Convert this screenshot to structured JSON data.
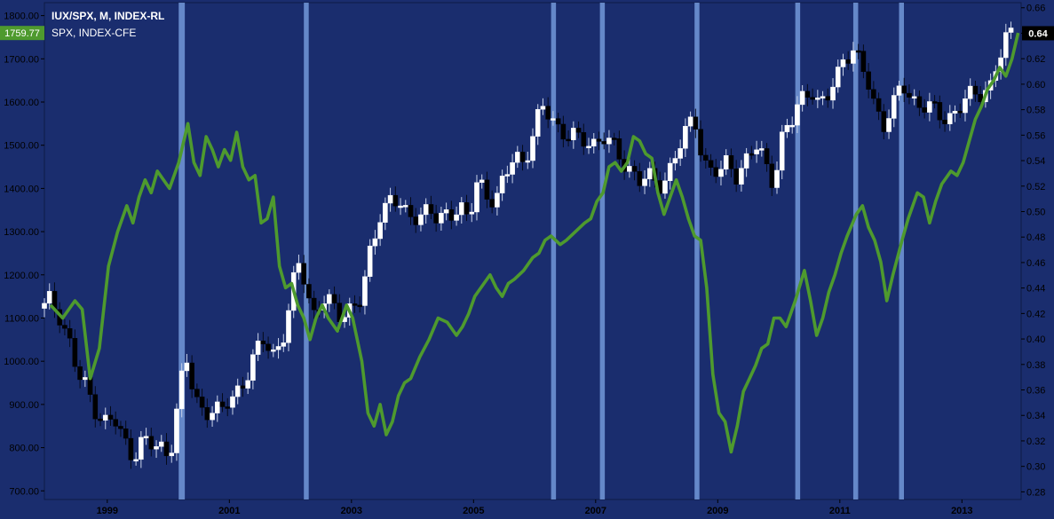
{
  "chart_data": {
    "type": "candlestick-line",
    "title": "IUX/SPX, M, INDEX-RL",
    "series": [
      {
        "name": "IUX/SPX, M, INDEX-RL",
        "kind": "candles",
        "axis": "right"
      },
      {
        "name": "SPX, INDEX-CFE",
        "kind": "line",
        "axis": "left"
      }
    ],
    "x_ticks": [
      "1999",
      "2001",
      "2003",
      "2005",
      "2007",
      "2009",
      "2011",
      "2013"
    ],
    "left_axis": {
      "ticks": [
        "700.00",
        "800.00",
        "900.00",
        "1000.00",
        "1100.00",
        "1200.00",
        "1300.00",
        "1400.00",
        "1500.00",
        "1600.00",
        "1700.00",
        "1800.00"
      ],
      "range": [
        680,
        1830
      ]
    },
    "right_axis": {
      "ticks": [
        "0.28",
        "0.30",
        "0.32",
        "0.34",
        "0.36",
        "0.38",
        "0.40",
        "0.42",
        "0.44",
        "0.46",
        "0.48",
        "0.50",
        "0.52",
        "0.54",
        "0.56",
        "0.58",
        "0.60",
        "0.62",
        "0.64",
        "0.66"
      ],
      "range": [
        0.274,
        0.664
      ]
    },
    "last_values": {
      "spx": "1759.77",
      "ratio": "0.64"
    },
    "spx_line": [
      [
        1998.1,
        1130
      ],
      [
        1998.3,
        1100
      ],
      [
        1998.5,
        1140
      ],
      [
        1998.62,
        1120
      ],
      [
        1998.75,
        960
      ],
      [
        1998.9,
        1030
      ],
      [
        1999.05,
        1220
      ],
      [
        1999.2,
        1300
      ],
      [
        1999.35,
        1360
      ],
      [
        1999.45,
        1320
      ],
      [
        1999.55,
        1380
      ],
      [
        1999.65,
        1420
      ],
      [
        1999.75,
        1390
      ],
      [
        1999.85,
        1440
      ],
      [
        1999.95,
        1420
      ],
      [
        2000.05,
        1400
      ],
      [
        2000.2,
        1460
      ],
      [
        2000.35,
        1550
      ],
      [
        2000.45,
        1460
      ],
      [
        2000.55,
        1430
      ],
      [
        2000.65,
        1520
      ],
      [
        2000.75,
        1490
      ],
      [
        2000.85,
        1450
      ],
      [
        2000.95,
        1490
      ],
      [
        2001.05,
        1465
      ],
      [
        2001.15,
        1530
      ],
      [
        2001.25,
        1450
      ],
      [
        2001.35,
        1420
      ],
      [
        2001.45,
        1430
      ],
      [
        2001.55,
        1320
      ],
      [
        2001.65,
        1330
      ],
      [
        2001.75,
        1380
      ],
      [
        2001.85,
        1220
      ],
      [
        2001.95,
        1170
      ],
      [
        2002.05,
        1180
      ],
      [
        2002.15,
        1130
      ],
      [
        2002.25,
        1100
      ],
      [
        2002.35,
        1050
      ],
      [
        2002.45,
        1100
      ],
      [
        2002.55,
        1130
      ],
      [
        2002.65,
        1100
      ],
      [
        2002.8,
        1070
      ],
      [
        2002.95,
        1130
      ],
      [
        2003.05,
        1100
      ],
      [
        2003.2,
        1000
      ],
      [
        2003.3,
        880
      ],
      [
        2003.4,
        850
      ],
      [
        2003.5,
        900
      ],
      [
        2003.6,
        830
      ],
      [
        2003.7,
        860
      ],
      [
        2003.8,
        920
      ],
      [
        2003.9,
        950
      ],
      [
        2004.0,
        960
      ],
      [
        2004.15,
        1010
      ],
      [
        2004.3,
        1050
      ],
      [
        2004.45,
        1100
      ],
      [
        2004.6,
        1090
      ],
      [
        2004.75,
        1060
      ],
      [
        2004.85,
        1080
      ],
      [
        2004.95,
        1110
      ],
      [
        2005.05,
        1150
      ],
      [
        2005.2,
        1180
      ],
      [
        2005.3,
        1200
      ],
      [
        2005.4,
        1170
      ],
      [
        2005.5,
        1150
      ],
      [
        2005.6,
        1180
      ],
      [
        2005.7,
        1190
      ],
      [
        2005.85,
        1210
      ],
      [
        2006.0,
        1240
      ],
      [
        2006.1,
        1250
      ],
      [
        2006.2,
        1280
      ],
      [
        2006.3,
        1290
      ],
      [
        2006.45,
        1270
      ],
      [
        2006.55,
        1280
      ],
      [
        2006.7,
        1300
      ],
      [
        2006.85,
        1320
      ],
      [
        2006.95,
        1330
      ],
      [
        2007.05,
        1370
      ],
      [
        2007.15,
        1390
      ],
      [
        2007.25,
        1450
      ],
      [
        2007.35,
        1460
      ],
      [
        2007.45,
        1440
      ],
      [
        2007.55,
        1460
      ],
      [
        2007.65,
        1520
      ],
      [
        2007.75,
        1510
      ],
      [
        2007.85,
        1480
      ],
      [
        2007.95,
        1470
      ],
      [
        2008.05,
        1390
      ],
      [
        2008.15,
        1340
      ],
      [
        2008.25,
        1380
      ],
      [
        2008.35,
        1420
      ],
      [
        2008.45,
        1380
      ],
      [
        2008.55,
        1330
      ],
      [
        2008.65,
        1290
      ],
      [
        2008.75,
        1280
      ],
      [
        2008.85,
        1170
      ],
      [
        2008.95,
        970
      ],
      [
        2009.05,
        880
      ],
      [
        2009.15,
        860
      ],
      [
        2009.25,
        790
      ],
      [
        2009.35,
        850
      ],
      [
        2009.45,
        930
      ],
      [
        2009.55,
        960
      ],
      [
        2009.65,
        990
      ],
      [
        2009.75,
        1030
      ],
      [
        2009.85,
        1040
      ],
      [
        2009.95,
        1100
      ],
      [
        2010.05,
        1100
      ],
      [
        2010.15,
        1080
      ],
      [
        2010.3,
        1140
      ],
      [
        2010.45,
        1210
      ],
      [
        2010.55,
        1140
      ],
      [
        2010.65,
        1060
      ],
      [
        2010.75,
        1100
      ],
      [
        2010.85,
        1160
      ],
      [
        2010.95,
        1200
      ],
      [
        2011.05,
        1250
      ],
      [
        2011.15,
        1290
      ],
      [
        2011.3,
        1340
      ],
      [
        2011.4,
        1360
      ],
      [
        2011.5,
        1310
      ],
      [
        2011.6,
        1280
      ],
      [
        2011.7,
        1230
      ],
      [
        2011.8,
        1140
      ],
      [
        2011.9,
        1200
      ],
      [
        2012.05,
        1280
      ],
      [
        2012.15,
        1330
      ],
      [
        2012.3,
        1390
      ],
      [
        2012.4,
        1380
      ],
      [
        2012.5,
        1320
      ],
      [
        2012.6,
        1370
      ],
      [
        2012.7,
        1410
      ],
      [
        2012.85,
        1440
      ],
      [
        2012.95,
        1430
      ],
      [
        2013.05,
        1460
      ],
      [
        2013.15,
        1510
      ],
      [
        2013.25,
        1560
      ],
      [
        2013.35,
        1590
      ],
      [
        2013.45,
        1630
      ],
      [
        2013.55,
        1650
      ],
      [
        2013.65,
        1680
      ],
      [
        2013.75,
        1660
      ],
      [
        2013.85,
        1700
      ],
      [
        2013.95,
        1760
      ]
    ],
    "ratio_line": [
      [
        1998.0,
        0.424
      ],
      [
        1998.1,
        0.43
      ],
      [
        1998.25,
        0.42
      ],
      [
        1998.4,
        0.4
      ],
      [
        1998.55,
        0.37
      ],
      [
        1998.7,
        0.36
      ],
      [
        1998.85,
        0.345
      ],
      [
        1999.0,
        0.335
      ],
      [
        1999.15,
        0.335
      ],
      [
        1999.3,
        0.32
      ],
      [
        1999.45,
        0.31
      ],
      [
        1999.6,
        0.32
      ],
      [
        1999.75,
        0.315
      ],
      [
        1999.9,
        0.315
      ],
      [
        2000.05,
        0.31
      ],
      [
        2000.15,
        0.34
      ],
      [
        2000.3,
        0.38
      ],
      [
        2000.35,
        0.38
      ],
      [
        2000.45,
        0.355
      ],
      [
        2000.6,
        0.345
      ],
      [
        2000.75,
        0.345
      ],
      [
        2000.9,
        0.34
      ],
      [
        2001.0,
        0.35
      ],
      [
        2001.15,
        0.36
      ],
      [
        2001.3,
        0.37
      ],
      [
        2001.45,
        0.385
      ],
      [
        2001.6,
        0.4
      ],
      [
        2001.75,
        0.39
      ],
      [
        2001.9,
        0.4
      ],
      [
        2002.0,
        0.42
      ],
      [
        2002.15,
        0.46
      ],
      [
        2002.25,
        0.45
      ],
      [
        2002.4,
        0.42
      ],
      [
        2002.55,
        0.43
      ],
      [
        2002.7,
        0.425
      ],
      [
        2002.85,
        0.42
      ],
      [
        2003.0,
        0.425
      ],
      [
        2003.2,
        0.43
      ],
      [
        2003.35,
        0.47
      ],
      [
        2003.5,
        0.5
      ],
      [
        2003.65,
        0.51
      ],
      [
        2003.8,
        0.505
      ],
      [
        2003.95,
        0.495
      ],
      [
        2004.1,
        0.5
      ],
      [
        2004.3,
        0.5
      ],
      [
        2004.45,
        0.49
      ],
      [
        2004.6,
        0.5
      ],
      [
        2004.8,
        0.505
      ],
      [
        2004.95,
        0.49
      ],
      [
        2005.1,
        0.525
      ],
      [
        2005.25,
        0.515
      ],
      [
        2005.4,
        0.51
      ],
      [
        2005.55,
        0.525
      ],
      [
        2005.7,
        0.545
      ],
      [
        2005.85,
        0.54
      ],
      [
        2006.0,
        0.56
      ],
      [
        2006.15,
        0.58
      ],
      [
        2006.3,
        0.575
      ],
      [
        2006.45,
        0.565
      ],
      [
        2006.6,
        0.56
      ],
      [
        2006.75,
        0.555
      ],
      [
        2006.9,
        0.555
      ],
      [
        2007.0,
        0.555
      ],
      [
        2007.15,
        0.56
      ],
      [
        2007.3,
        0.55
      ],
      [
        2007.45,
        0.54
      ],
      [
        2007.6,
        0.535
      ],
      [
        2007.75,
        0.525
      ],
      [
        2007.9,
        0.525
      ],
      [
        2008.05,
        0.52
      ],
      [
        2008.2,
        0.53
      ],
      [
        2008.35,
        0.545
      ],
      [
        2008.5,
        0.56
      ],
      [
        2008.65,
        0.575
      ],
      [
        2008.8,
        0.54
      ],
      [
        2008.95,
        0.53
      ],
      [
        2009.1,
        0.53
      ],
      [
        2009.2,
        0.54
      ],
      [
        2009.35,
        0.53
      ],
      [
        2009.5,
        0.54
      ],
      [
        2009.65,
        0.55
      ],
      [
        2009.8,
        0.54
      ],
      [
        2009.95,
        0.525
      ],
      [
        2010.1,
        0.56
      ],
      [
        2010.25,
        0.57
      ],
      [
        2010.4,
        0.59
      ],
      [
        2010.55,
        0.6
      ],
      [
        2010.7,
        0.58
      ],
      [
        2010.85,
        0.59
      ],
      [
        2011.0,
        0.61
      ],
      [
        2011.1,
        0.625
      ],
      [
        2011.25,
        0.625
      ],
      [
        2011.4,
        0.61
      ],
      [
        2011.5,
        0.6
      ],
      [
        2011.6,
        0.585
      ],
      [
        2011.75,
        0.57
      ],
      [
        2011.9,
        0.58
      ],
      [
        2012.05,
        0.6
      ],
      [
        2012.2,
        0.59
      ],
      [
        2012.35,
        0.585
      ],
      [
        2012.5,
        0.58
      ],
      [
        2012.65,
        0.575
      ],
      [
        2012.8,
        0.575
      ],
      [
        2012.95,
        0.58
      ],
      [
        2013.05,
        0.585
      ],
      [
        2013.2,
        0.59
      ],
      [
        2013.35,
        0.595
      ],
      [
        2013.5,
        0.6
      ],
      [
        2013.6,
        0.615
      ],
      [
        2013.7,
        0.625
      ],
      [
        2013.8,
        0.64
      ]
    ],
    "highlight_bands": [
      [
        2000.2,
        2000.3
      ],
      [
        2002.25,
        2002.33
      ],
      [
        2006.3,
        2006.38
      ],
      [
        2007.1,
        2007.18
      ],
      [
        2008.65,
        2008.73
      ],
      [
        2010.3,
        2010.38
      ],
      [
        2011.25,
        2011.33
      ],
      [
        2012.0,
        2012.08
      ]
    ],
    "grid": false,
    "colors": {
      "background": "#1a2d6e",
      "spx_line": "#4e9a2e",
      "band": "#7fa7e8",
      "candle_up": "#ffffff",
      "candle_down": "#000000",
      "text": "#ffffff",
      "spx_badge": "#4e9a2e",
      "ratio_badge": "#000000"
    }
  }
}
